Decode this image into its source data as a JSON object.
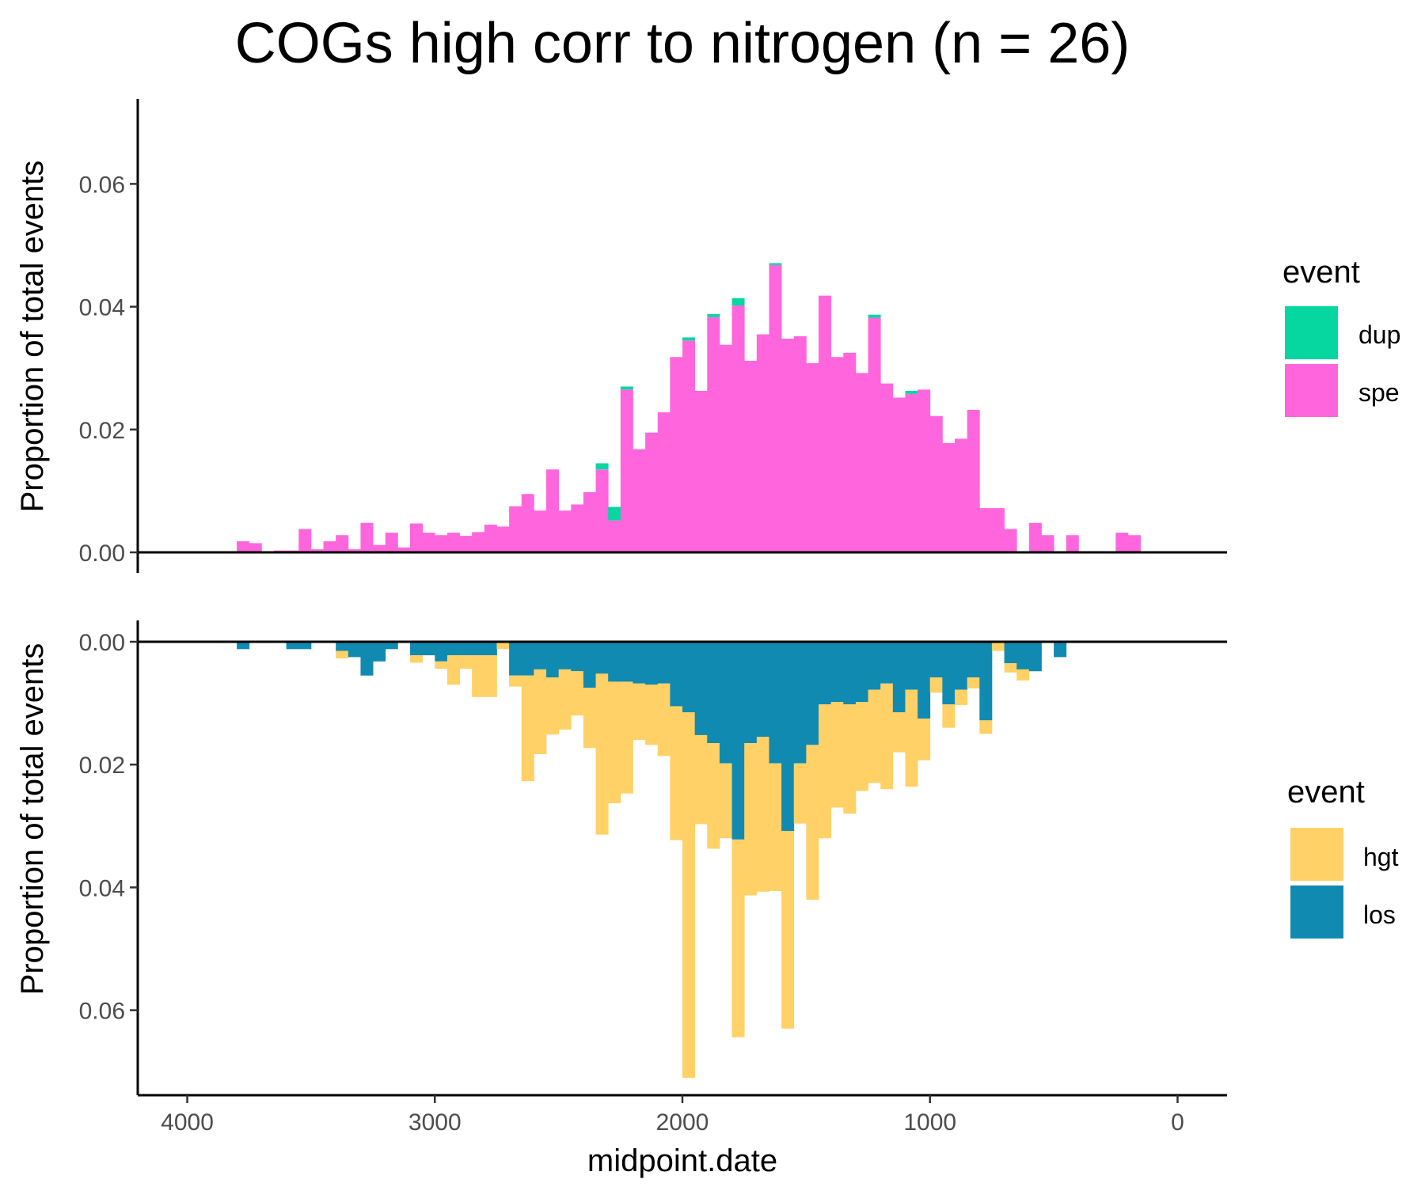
{
  "chart_data": {
    "type": "bar",
    "title": "COGs high corr to nitrogen (n = 26)",
    "xlabel": "midpoint.date",
    "x_reversed": true,
    "xlim": [
      4200,
      -200
    ],
    "x_ticks": [
      4000,
      3000,
      2000,
      1000,
      0
    ],
    "x_tick_labels": [
      "4000",
      "3000",
      "2000",
      "1000",
      "0"
    ],
    "bin_centers": [
      3775,
      3725,
      3675,
      3625,
      3575,
      3525,
      3475,
      3425,
      3375,
      3325,
      3275,
      3225,
      3175,
      3125,
      3075,
      3025,
      2975,
      2925,
      2875,
      2825,
      2775,
      2725,
      2675,
      2625,
      2575,
      2525,
      2475,
      2425,
      2375,
      2325,
      2275,
      2225,
      2175,
      2125,
      2075,
      2025,
      1975,
      1925,
      1875,
      1825,
      1775,
      1725,
      1675,
      1625,
      1575,
      1525,
      1475,
      1425,
      1375,
      1325,
      1275,
      1225,
      1175,
      1125,
      1075,
      1025,
      975,
      925,
      875,
      825,
      775,
      725,
      675,
      625,
      575,
      525,
      475,
      425,
      375,
      325,
      275,
      225,
      175
    ],
    "panels": [
      {
        "position": "top",
        "ylabel": "Proportion of total events",
        "ylim": [
          0,
          0.074
        ],
        "y_direction": "up",
        "y_ticks": [
          "0.00",
          "0.02",
          "0.04",
          "0.06"
        ],
        "legend": {
          "title": "event",
          "placement": "right"
        },
        "series": [
          {
            "name": "spe",
            "color": "#FF66DD",
            "values": [
              0.0018,
              0.0015,
              0,
              0.0003,
              0.0003,
              0.0038,
              0.0005,
              0.0018,
              0.0028,
              0.0005,
              0.0048,
              0.0012,
              0.0032,
              0.0008,
              0.0047,
              0.0032,
              0.0028,
              0.0032,
              0.0027,
              0.0033,
              0.0045,
              0.0042,
              0.0075,
              0.0095,
              0.0068,
              0.0135,
              0.0068,
              0.0078,
              0.0098,
              0.0135,
              0.0052,
              0.0265,
              0.0168,
              0.0195,
              0.0228,
              0.0318,
              0.0345,
              0.0263,
              0.0383,
              0.0338,
              0.0402,
              0.0312,
              0.0355,
              0.0468,
              0.0348,
              0.0352,
              0.0308,
              0.0418,
              0.0318,
              0.0325,
              0.0292,
              0.0382,
              0.0275,
              0.0252,
              0.0258,
              0.0265,
              0.0222,
              0.0178,
              0.0185,
              0.0232,
              0.0072,
              0.0072,
              0.0038,
              0,
              0.0048,
              0.0028,
              0,
              0.0028,
              0,
              0,
              0,
              0.0032,
              0.0028
            ]
          },
          {
            "name": "dup",
            "color": "#06D6A0",
            "values": [
              0,
              0,
              0,
              0,
              0,
              0,
              0,
              0,
              0,
              0,
              0,
              0,
              0,
              0,
              0,
              0,
              0,
              0,
              0,
              0,
              0,
              0,
              0,
              0,
              0,
              0,
              0,
              0,
              0,
              0.001,
              0.0022,
              0.0005,
              0,
              0,
              0,
              0,
              0.0005,
              0,
              0.0005,
              0,
              0.0012,
              0,
              0,
              0.0003,
              0,
              0,
              0,
              0,
              0,
              0,
              0,
              0.0005,
              0,
              0,
              0.0005,
              0,
              0,
              0,
              0,
              0,
              0,
              0,
              0,
              0,
              0,
              0,
              0,
              0,
              0,
              0,
              0,
              0,
              0
            ]
          }
        ]
      },
      {
        "position": "bottom",
        "ylabel": "Proportion of total events",
        "ylim": [
          0,
          0.074
        ],
        "y_direction": "down",
        "y_ticks": [
          "0.00",
          "0.02",
          "0.04",
          "0.06"
        ],
        "legend": {
          "title": "event",
          "placement": "right"
        },
        "series": [
          {
            "name": "los",
            "color": "#118AB2",
            "values": [
              0.0012,
              0,
              0,
              0,
              0.0012,
              0.0012,
              0,
              0,
              0.0015,
              0.0025,
              0.0055,
              0.0032,
              0.0012,
              0,
              0.0022,
              0.0022,
              0.0032,
              0.0022,
              0.0022,
              0.0022,
              0.0022,
              0,
              0.0055,
              0.0055,
              0.0045,
              0.0058,
              0.0045,
              0.0048,
              0.0075,
              0.0052,
              0.0065,
              0.0065,
              0.0068,
              0.007,
              0.0068,
              0.0105,
              0.0115,
              0.0152,
              0.0165,
              0.0198,
              0.0322,
              0.0165,
              0.0155,
              0.0198,
              0.0308,
              0.0198,
              0.0168,
              0.0102,
              0.0098,
              0.0102,
              0.0098,
              0.0078,
              0.0068,
              0.0115,
              0.0078,
              0.0125,
              0.0058,
              0.0102,
              0.0078,
              0.0058,
              0.0128,
              0,
              0.0035,
              0.0045,
              0.0048,
              0,
              0.0025,
              0,
              0,
              0,
              0,
              0,
              0
            ]
          },
          {
            "name": "hgt",
            "color": "#FFD166",
            "values": [
              0,
              0,
              0,
              0,
              0,
              0,
              0,
              0,
              0.0012,
              0,
              0,
              0,
              0,
              0,
              0.0012,
              0,
              0.0012,
              0.0048,
              0.0022,
              0.0068,
              0.0068,
              0.0012,
              0.0018,
              0.0172,
              0.0138,
              0.0093,
              0.0098,
              0.0072,
              0.0098,
              0.0262,
              0.0198,
              0.0182,
              0.0092,
              0.0098,
              0.0118,
              0.0218,
              0.0595,
              0.0145,
              0.0172,
              0.0122,
              0.0322,
              0.0248,
              0.0252,
              0.0208,
              0.0322,
              0.0098,
              0.0252,
              0.0218,
              0.0172,
              0.0178,
              0.0145,
              0.0152,
              0.0172,
              0.0065,
              0.0158,
              0.0068,
              0.0025,
              0.0038,
              0.0025,
              0.0018,
              0.0022,
              0.0015,
              0.0015,
              0.0018,
              0,
              0,
              0,
              0,
              0,
              0,
              0,
              0,
              0
            ]
          }
        ]
      }
    ]
  }
}
